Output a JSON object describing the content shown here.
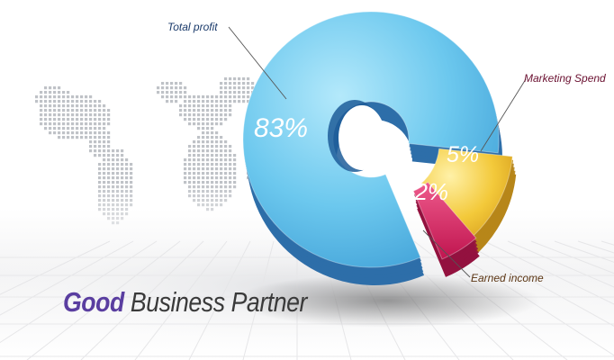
{
  "chart_data": {
    "type": "pie",
    "style": "3d-donut",
    "categories": [
      "Total profit",
      "Earned income",
      "Marketing Spend"
    ],
    "values": [
      83,
      12,
      5
    ],
    "value_labels": [
      "83%",
      "12%",
      "5%"
    ],
    "colors": [
      "#5fc3eb",
      "#f2c93a",
      "#d51f5e"
    ],
    "label_colors": [
      "#1c3c6c",
      "#5a3412",
      "#6a1030"
    ]
  },
  "headline": {
    "word1": "Good",
    "word2": "Business Partner",
    "word1_color": "#5a3ea0",
    "word2_color": "#3a3a3a"
  },
  "decor": {
    "world_map": "dotted-world-map",
    "floor": "reflective-tiled-floor"
  }
}
